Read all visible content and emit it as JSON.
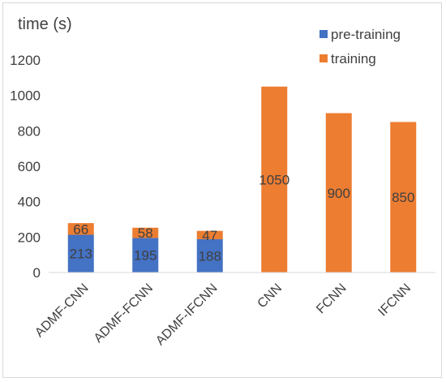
{
  "chart_data": {
    "type": "bar",
    "stacked": true,
    "title": "",
    "ylabel": "time (s)",
    "xlabel": "",
    "categories": [
      "ADMF-CNN",
      "ADMF-FCNN",
      "ADMF-IFCNN",
      "CNN",
      "FCNN",
      "IFCNN"
    ],
    "series": [
      {
        "name": "pre-training",
        "color": "#4472c4",
        "values": [
          213,
          195,
          188,
          null,
          null,
          null
        ]
      },
      {
        "name": "training",
        "color": "#ed7d31",
        "values": [
          66,
          58,
          47,
          1050,
          900,
          850
        ]
      }
    ],
    "ylim": [
      0,
      1200
    ],
    "yticks": [
      0,
      200,
      400,
      600,
      800,
      1000,
      1200
    ],
    "grid": false,
    "legend_position": "top-right",
    "data_labels": true
  }
}
